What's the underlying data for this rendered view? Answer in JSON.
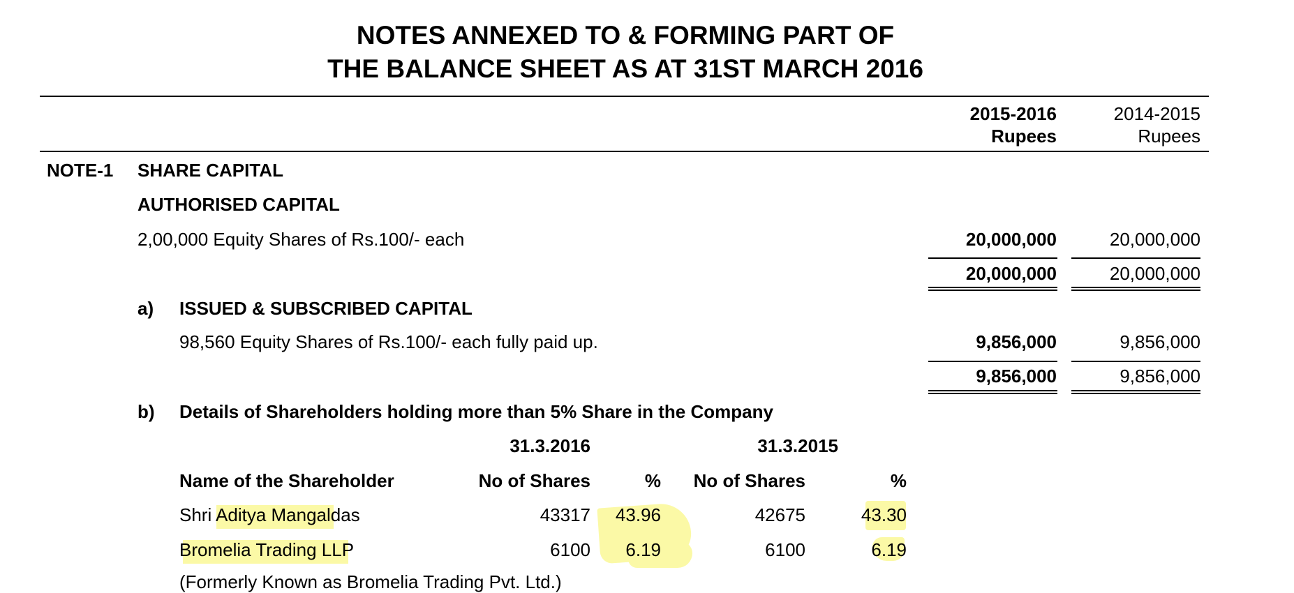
{
  "title": {
    "line1": "NOTES ANNEXED TO & FORMING PART OF",
    "line2": "THE BALANCE SHEET AS AT 31ST MARCH 2016"
  },
  "columns": {
    "current_year": "2015-2016",
    "current_unit": "Rupees",
    "prior_year": "2014-2015",
    "prior_unit": "Rupees"
  },
  "note": {
    "number": "NOTE-1",
    "heading": "SHARE CAPITAL",
    "authorised": {
      "heading": "AUTHORISED CAPITAL",
      "description": "2,00,000 Equity Shares of Rs.100/- each",
      "current": "20,000,000",
      "prior": "20,000,000",
      "total_current": "20,000,000",
      "total_prior": "20,000,000"
    },
    "issued": {
      "marker": "a)",
      "heading": "ISSUED & SUBSCRIBED CAPITAL",
      "description": "98,560 Equity Shares of Rs.100/- each fully paid up.",
      "current": "9,856,000",
      "prior": "9,856,000",
      "total_current": "9,856,000",
      "total_prior": "9,856,000"
    },
    "shareholders": {
      "marker": "b)",
      "heading": "Details of Shareholders holding more than 5% Share in the Company",
      "date_current": "31.3.2016",
      "date_prior": "31.3.2015",
      "col_name": "Name of the Shareholder",
      "col_shares": "No of Shares",
      "col_pct": "%",
      "rows": [
        {
          "name_pre": "Shri ",
          "name_hl": "Aditya Mangal",
          "name_post": "das",
          "shares_current": "43317",
          "pct_current": "43.96",
          "shares_prior": "42675",
          "pct_prior": "43.30"
        },
        {
          "name_pre": "B",
          "name_hl": "romelia Trading LL",
          "name_post": "P",
          "shares_current": "6100",
          "pct_current": "6.19",
          "shares_prior": "6100",
          "pct_prior": "6.19"
        }
      ],
      "partial_row": "(Formerly Known as Bromelia Trading Pvt. Ltd.)"
    }
  },
  "colors": {
    "highlight": "#fbf9a6",
    "text": "#000000"
  }
}
